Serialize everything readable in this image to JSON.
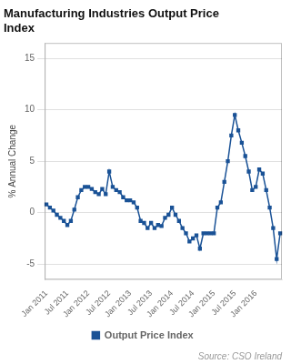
{
  "chart_data": {
    "type": "line",
    "title": "Manufacturing Industries Output Price\nIndex",
    "ylabel": "% Annual Change",
    "annotations": [
      "Source: CSO Ireland"
    ],
    "categories": [
      "Jan 2011",
      null,
      null,
      null,
      null,
      null,
      "Jul 2011",
      null,
      null,
      null,
      null,
      null,
      "Jan 2012",
      null,
      null,
      null,
      null,
      null,
      "Jul 2012",
      null,
      null,
      null,
      null,
      null,
      "Jan 2013",
      null,
      null,
      null,
      null,
      null,
      "Jul 2013",
      null,
      null,
      null,
      null,
      null,
      "Jan 2014",
      null,
      null,
      null,
      null,
      null,
      "Jul 2014",
      null,
      null,
      null,
      null,
      null,
      "Jan 2015",
      null,
      null,
      null,
      null,
      null,
      "Jul 2015",
      null,
      null,
      null,
      null,
      null,
      "Jan 2016",
      null,
      null,
      null,
      null,
      null,
      null,
      null
    ],
    "series": [
      {
        "name": "Output Price Index",
        "color": "#1a5296",
        "marker": "square",
        "values": [
          0.8,
          0.5,
          0.2,
          -0.2,
          -0.5,
          -0.8,
          -1.2,
          -0.8,
          0.3,
          1.5,
          2.2,
          2.5,
          2.5,
          2.3,
          2.0,
          1.8,
          2.3,
          1.8,
          4.0,
          2.5,
          2.2,
          2.0,
          1.5,
          1.2,
          1.2,
          1.0,
          0.5,
          -0.8,
          -1.0,
          -1.5,
          -1.0,
          -1.5,
          -1.2,
          -1.3,
          -0.5,
          -0.2,
          0.5,
          -0.2,
          -0.8,
          -1.5,
          -2.0,
          -2.8,
          -2.5,
          -2.2,
          -3.5,
          -2.0,
          -2.0,
          -2.0,
          -2.0,
          0.5,
          1.0,
          3.0,
          5.0,
          7.5,
          9.5,
          8.0,
          6.8,
          5.5,
          4.0,
          2.2,
          2.5,
          4.2,
          3.8,
          2.2,
          0.5,
          -1.5,
          -4.5,
          -2.0
        ]
      }
    ],
    "ylim": [
      -6.5,
      16.5
    ],
    "yticks": [
      -5,
      0,
      5,
      10,
      15
    ],
    "grid": true,
    "legend": "bottom"
  }
}
